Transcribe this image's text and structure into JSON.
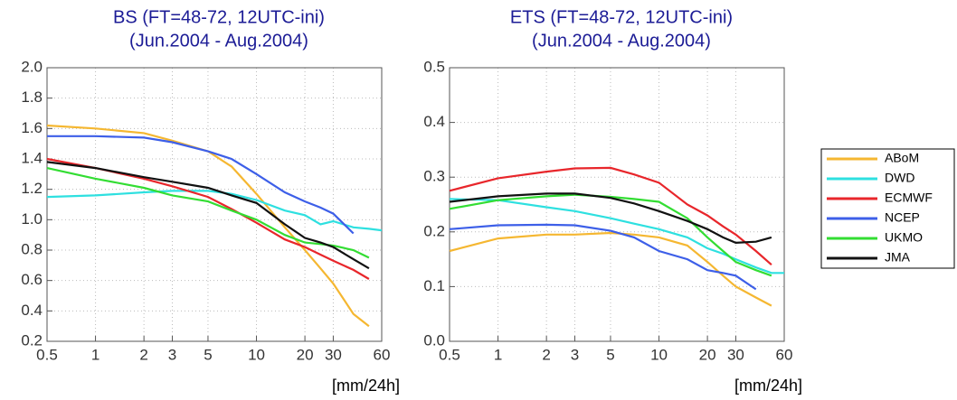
{
  "chart_data": [
    {
      "type": "line",
      "title": "BS (FT=48-72, 12UTC-ini)",
      "subtitle": "(Jun.2004 - Aug.2004)",
      "xlabel": "[mm/24h]",
      "log_x": true,
      "grid": true,
      "x": [
        0.5,
        1,
        2,
        3,
        5,
        7,
        10,
        15,
        20,
        25,
        30,
        40,
        50,
        60
      ],
      "xlim": [
        0.5,
        60
      ],
      "xticks": [
        0.5,
        1,
        2,
        3,
        5,
        10,
        20,
        30,
        60
      ],
      "ylim": [
        0.2,
        2.0
      ],
      "yticks": [
        0.2,
        0.4,
        0.6,
        0.8,
        {
          "value": 1,
          "label": "1.0"
        },
        1.2,
        1.4,
        1.6,
        1.8,
        {
          "value": 2,
          "label": "2.0"
        }
      ],
      "series": [
        {
          "name": "ABoM",
          "color": "#f5b731",
          "values": [
            1.62,
            1.6,
            1.57,
            1.52,
            1.45,
            1.35,
            1.17,
            0.95,
            0.8,
            0.68,
            0.58,
            0.38,
            0.3,
            null
          ]
        },
        {
          "name": "DWD",
          "color": "#2ee0e0",
          "values": [
            1.15,
            1.16,
            1.18,
            1.19,
            1.19,
            1.17,
            1.13,
            1.06,
            1.03,
            0.97,
            0.99,
            0.95,
            0.94,
            0.93
          ]
        },
        {
          "name": "ECMWF",
          "color": "#e8262b",
          "values": [
            1.4,
            1.34,
            1.27,
            1.22,
            1.15,
            1.07,
            0.98,
            0.87,
            0.82,
            0.77,
            0.73,
            0.67,
            0.61,
            null
          ]
        },
        {
          "name": "NCEP",
          "color": "#3d5fe8",
          "values": [
            1.55,
            1.55,
            1.54,
            1.51,
            1.45,
            1.4,
            1.3,
            1.18,
            1.12,
            1.08,
            1.04,
            0.91,
            null,
            null
          ]
        },
        {
          "name": "UKMO",
          "color": "#33dd33",
          "values": [
            1.34,
            1.27,
            1.21,
            1.16,
            1.12,
            1.06,
            1.0,
            0.9,
            0.85,
            0.84,
            0.83,
            0.8,
            0.75,
            null
          ]
        },
        {
          "name": "JMA",
          "color": "#111111",
          "values": [
            1.38,
            1.34,
            1.28,
            1.25,
            1.21,
            1.16,
            1.11,
            0.97,
            0.88,
            0.85,
            0.82,
            0.74,
            0.68,
            null
          ]
        }
      ]
    },
    {
      "type": "line",
      "title": "ETS (FT=48-72, 12UTC-ini)",
      "subtitle": "(Jun.2004 - Aug.2004)",
      "xlabel": "[mm/24h]",
      "log_x": true,
      "grid": true,
      "legend": "right",
      "x": [
        0.5,
        1,
        2,
        3,
        5,
        7,
        10,
        15,
        20,
        25,
        30,
        40,
        50,
        60
      ],
      "xlim": [
        0.5,
        60
      ],
      "xticks": [
        0.5,
        1,
        2,
        3,
        5,
        10,
        20,
        30,
        60
      ],
      "ylim": [
        0,
        0.5
      ],
      "yticks": [
        {
          "value": 0,
          "label": "0.0"
        },
        0.1,
        0.2,
        0.3,
        0.4,
        0.5
      ],
      "series": [
        {
          "name": "ABoM",
          "color": "#f5b731",
          "values": [
            0.165,
            0.188,
            0.195,
            0.195,
            0.198,
            0.195,
            0.19,
            0.175,
            0.145,
            0.12,
            0.1,
            0.08,
            0.065,
            null
          ]
        },
        {
          "name": "DWD",
          "color": "#2ee0e0",
          "values": [
            0.26,
            0.258,
            0.245,
            0.238,
            0.225,
            0.215,
            0.205,
            0.19,
            0.17,
            0.16,
            0.15,
            0.135,
            0.125,
            0.125
          ]
        },
        {
          "name": "ECMWF",
          "color": "#e8262b",
          "values": [
            0.275,
            0.298,
            0.31,
            0.316,
            0.317,
            0.305,
            0.29,
            0.25,
            0.23,
            0.21,
            0.195,
            0.165,
            0.14,
            null
          ]
        },
        {
          "name": "NCEP",
          "color": "#3d5fe8",
          "values": [
            0.205,
            0.212,
            0.213,
            0.212,
            0.202,
            0.19,
            0.165,
            0.15,
            0.13,
            0.125,
            0.12,
            0.095,
            null,
            null
          ]
        },
        {
          "name": "UKMO",
          "color": "#33dd33",
          "values": [
            0.242,
            0.258,
            0.265,
            0.268,
            0.264,
            0.26,
            0.255,
            0.225,
            0.19,
            0.165,
            0.145,
            0.13,
            0.12,
            null
          ]
        },
        {
          "name": "JMA",
          "color": "#111111",
          "values": [
            0.255,
            0.265,
            0.27,
            0.27,
            0.262,
            0.252,
            0.238,
            0.22,
            0.205,
            0.19,
            0.18,
            0.182,
            0.19,
            null
          ]
        }
      ]
    }
  ]
}
